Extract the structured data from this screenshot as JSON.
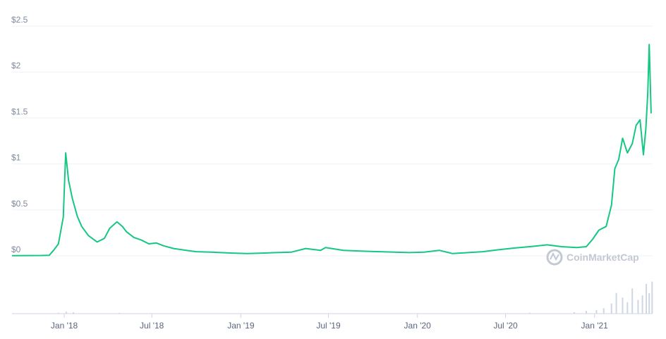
{
  "chart_data": {
    "type": "line",
    "line_color": "#16c784",
    "volume_color": "#cfd6e4",
    "watermark": "CoinMarketCap",
    "y_ticks": [
      "$0",
      "$0.5",
      "$1",
      "$1.5",
      "$2",
      "$2.5"
    ],
    "y_tick_values": [
      0,
      0.5,
      1,
      1.5,
      2,
      2.5
    ],
    "ylim": [
      0,
      2.5
    ],
    "x_ticks": [
      "Jan '18",
      "Jul '18",
      "Jan '19",
      "Jul '19",
      "Jan '20",
      "Jul '20",
      "Jan '21"
    ],
    "x_tick_dates": [
      "2018-01-01",
      "2018-07-01",
      "2019-01-01",
      "2019-07-01",
      "2020-01-01",
      "2020-07-01",
      "2021-01-01"
    ],
    "xlim": [
      "2017-09-15",
      "2021-05-01"
    ],
    "series": [
      {
        "x": [
          "2017-09-15",
          "2017-10-15",
          "2017-11-15",
          "2017-12-01",
          "2017-12-10",
          "2017-12-20",
          "2017-12-30",
          "2018-01-04",
          "2018-01-10",
          "2018-01-18",
          "2018-01-28",
          "2018-02-06",
          "2018-02-20",
          "2018-03-10",
          "2018-03-25",
          "2018-04-05",
          "2018-04-20",
          "2018-05-01",
          "2018-05-10",
          "2018-05-25",
          "2018-06-10",
          "2018-06-25",
          "2018-07-10",
          "2018-07-25",
          "2018-08-15",
          "2018-09-10",
          "2018-10-01",
          "2018-11-01",
          "2018-11-20",
          "2018-12-15",
          "2019-01-15",
          "2019-02-15",
          "2019-03-15",
          "2019-04-15",
          "2019-05-15",
          "2019-06-15",
          "2019-06-25",
          "2019-08-01",
          "2019-09-15",
          "2019-10-15",
          "2019-11-15",
          "2019-12-15",
          "2020-01-15",
          "2020-02-15",
          "2020-03-13",
          "2020-04-15",
          "2020-05-15",
          "2020-06-15",
          "2020-07-20",
          "2020-08-20",
          "2020-09-25",
          "2020-10-25",
          "2020-11-25",
          "2020-12-15",
          "2020-12-28",
          "2021-01-10",
          "2021-01-25",
          "2021-02-05",
          "2021-02-12",
          "2021-02-20",
          "2021-02-28",
          "2021-03-10",
          "2021-03-20",
          "2021-03-28",
          "2021-04-05",
          "2021-04-12",
          "2021-04-17",
          "2021-04-21",
          "2021-04-24",
          "2021-04-28"
        ],
        "values": [
          0.002,
          0.003,
          0.004,
          0.006,
          0.06,
          0.13,
          0.42,
          1.12,
          0.82,
          0.62,
          0.43,
          0.32,
          0.22,
          0.15,
          0.19,
          0.3,
          0.37,
          0.32,
          0.26,
          0.2,
          0.17,
          0.13,
          0.14,
          0.11,
          0.08,
          0.06,
          0.045,
          0.04,
          0.035,
          0.03,
          0.025,
          0.03,
          0.035,
          0.04,
          0.08,
          0.06,
          0.09,
          0.06,
          0.05,
          0.045,
          0.04,
          0.035,
          0.04,
          0.06,
          0.025,
          0.035,
          0.045,
          0.065,
          0.085,
          0.1,
          0.12,
          0.1,
          0.09,
          0.1,
          0.18,
          0.28,
          0.32,
          0.55,
          0.95,
          1.05,
          1.28,
          1.12,
          1.22,
          1.42,
          1.48,
          1.1,
          1.38,
          1.76,
          2.3,
          1.55
        ]
      }
    ],
    "volume": {
      "x": [
        "2017-12-20",
        "2018-01-05",
        "2018-01-20",
        "2018-04-25",
        "2020-08-20",
        "2020-11-20",
        "2020-12-15",
        "2021-01-05",
        "2021-01-20",
        "2021-02-05",
        "2021-02-15",
        "2021-02-28",
        "2021-03-10",
        "2021-03-20",
        "2021-04-01",
        "2021-04-10",
        "2021-04-18",
        "2021-04-24",
        "2021-04-30"
      ],
      "values": [
        0.02,
        0.04,
        0.03,
        0.015,
        0.02,
        0.03,
        0.06,
        0.08,
        0.12,
        0.22,
        0.45,
        0.35,
        0.25,
        0.55,
        0.3,
        0.4,
        0.65,
        0.45,
        0.7
      ],
      "max_note": "relative volume (0-1 of volume pane)"
    }
  }
}
